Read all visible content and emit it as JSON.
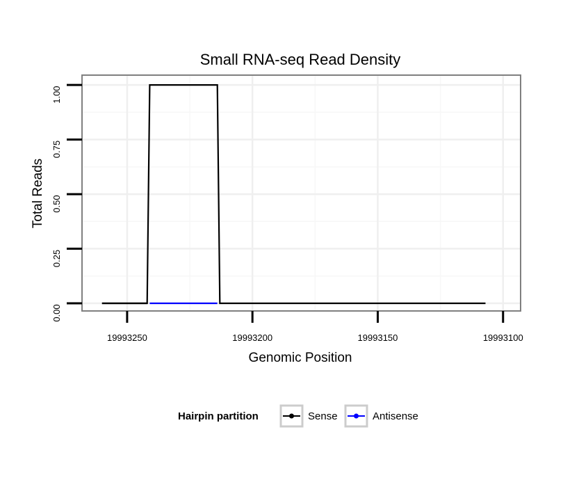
{
  "chart_data": {
    "type": "line",
    "title": "Small RNA-seq Read Density",
    "xlabel": "Genomic Position",
    "ylabel": "Total Reads",
    "xlim": [
      19993268,
      19993093
    ],
    "ylim": [
      -0.035,
      1.045
    ],
    "x_reversed": true,
    "grid": true,
    "x_ticks": [
      19993250,
      19993200,
      19993150,
      19993100
    ],
    "x_tick_labels": [
      "19993250",
      "19993200",
      "19993150",
      "19993100"
    ],
    "y_ticks": [
      0,
      0.25,
      0.5,
      0.75,
      1.0
    ],
    "y_tick_labels": [
      "0.00",
      "0.25",
      "0.50",
      "0.75",
      "1.00"
    ],
    "legend": {
      "title": "Hairpin partition",
      "position": "bottom",
      "entries": [
        {
          "label": "Sense",
          "color": "#000000"
        },
        {
          "label": "Antisense",
          "color": "#0000ff"
        }
      ]
    },
    "series": [
      {
        "name": "Sense",
        "color": "#000000",
        "x": [
          19993260,
          19993242,
          19993241,
          19993214,
          19993213,
          19993107
        ],
        "values": [
          0,
          0,
          1,
          1,
          0,
          0
        ]
      },
      {
        "name": "Antisense",
        "color": "#0000ff",
        "x": [
          19993241,
          19993214
        ],
        "values": [
          0,
          0
        ]
      }
    ]
  }
}
